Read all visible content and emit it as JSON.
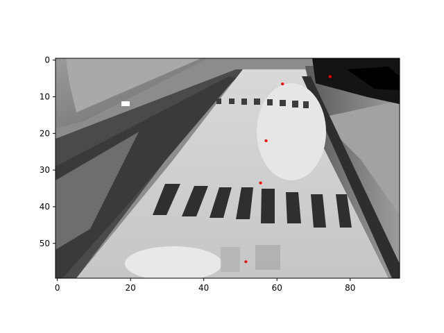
{
  "image": {
    "cols": 94,
    "rows": 60,
    "colormap": "gray",
    "content": "grayscale low-resolution camera frame of an indoor track/road with dark crosswalk-like stripes and a dark bordered lane on the left"
  },
  "axes": {
    "xlim": [
      -0.5,
      93.5
    ],
    "ylim": [
      59.5,
      -0.5
    ],
    "x_ticks": [
      0,
      20,
      40,
      60,
      80
    ],
    "y_ticks": [
      0,
      10,
      20,
      30,
      40,
      50
    ],
    "x_tick_labels": [
      "0",
      "20",
      "40",
      "60",
      "80"
    ],
    "y_tick_labels": [
      "0",
      "10",
      "20",
      "30",
      "40",
      "50"
    ]
  },
  "overlay": {
    "marker_color": "#ff0000",
    "points": [
      {
        "x": 74.5,
        "y": 4.5
      },
      {
        "x": 61.5,
        "y": 6.5
      },
      {
        "x": 57.0,
        "y": 22.0
      },
      {
        "x": 55.5,
        "y": 33.5
      },
      {
        "x": 51.5,
        "y": 55.0
      }
    ]
  }
}
